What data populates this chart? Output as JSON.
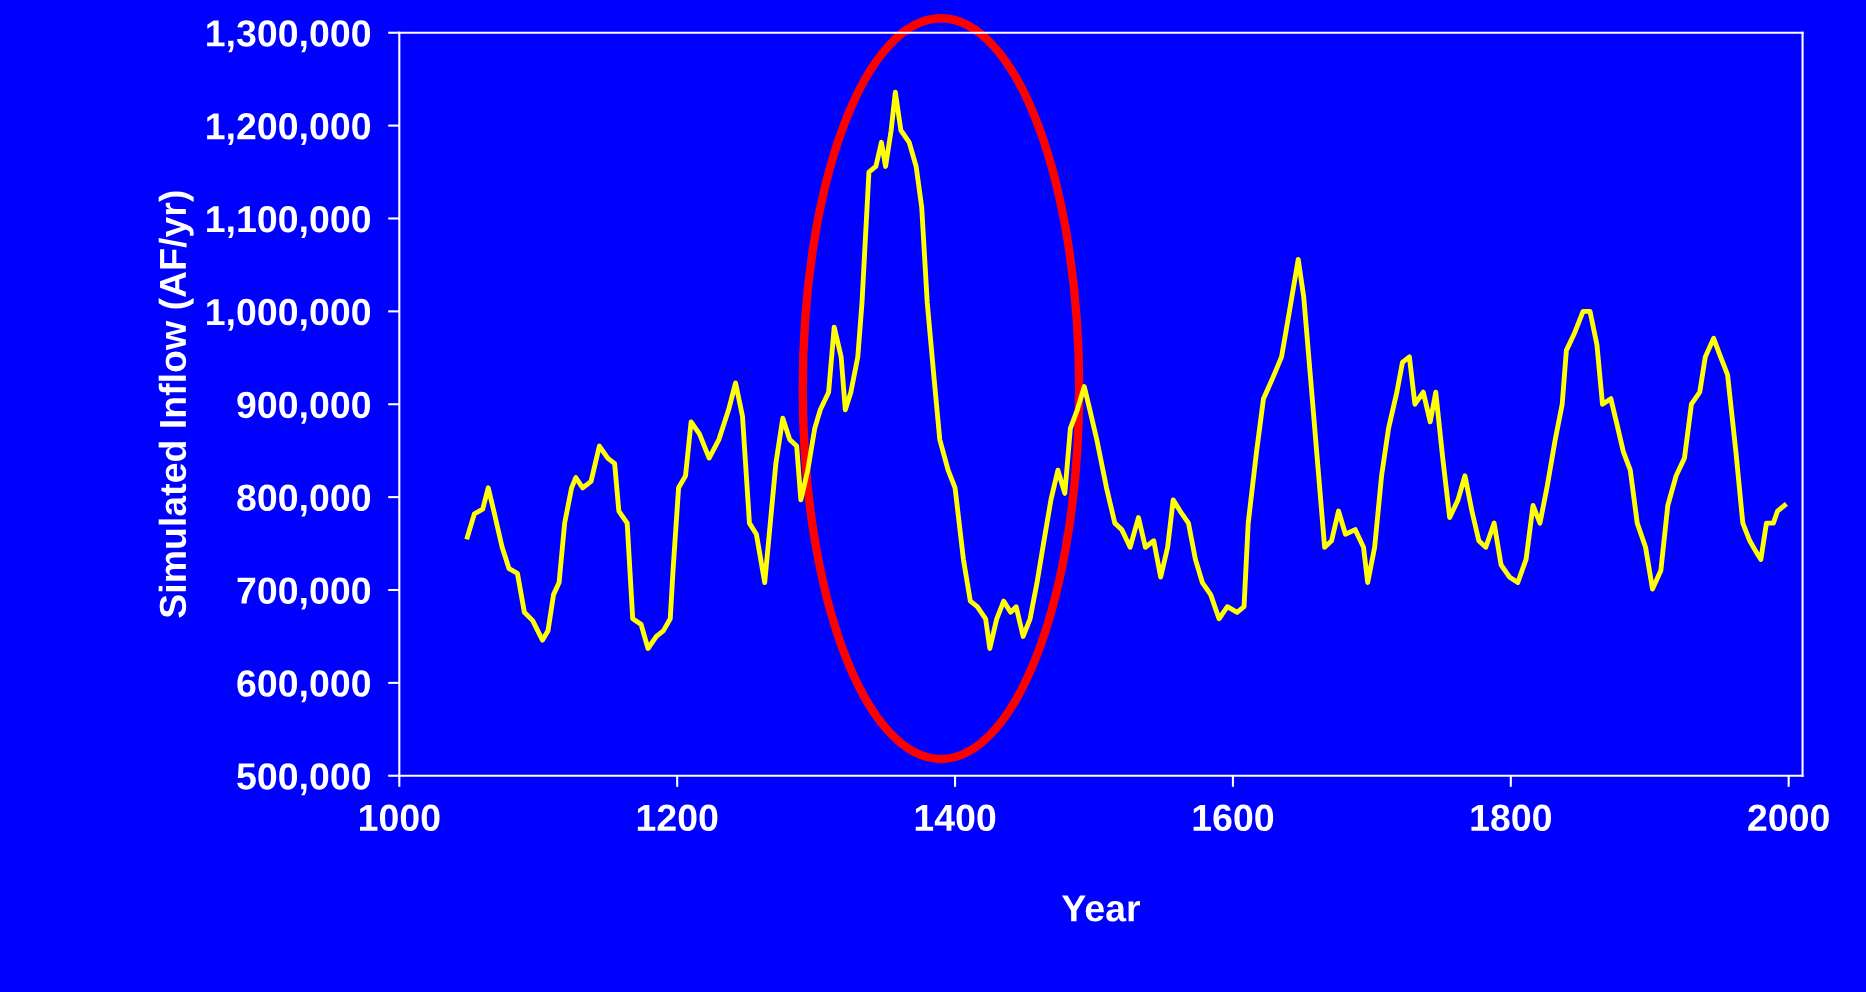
{
  "chart_data": {
    "type": "line",
    "xlabel": "Year",
    "ylabel": "Simulated Inflow (AF/yr)",
    "xlim": [
      1000,
      2010
    ],
    "xticks": [
      1000,
      1200,
      1400,
      1600,
      1800,
      2000
    ],
    "ylim": [
      500000,
      1300000
    ],
    "yticks": [
      {
        "value": 500000,
        "label": "500,000"
      },
      {
        "value": 600000,
        "label": "600,000"
      },
      {
        "value": 700000,
        "label": "700,000"
      },
      {
        "value": 800000,
        "label": "800,000"
      },
      {
        "value": 900000,
        "label": "900,000"
      },
      {
        "value": 1000000,
        "label": "1,000,000"
      },
      {
        "value": 1100000,
        "label": "1,100,000"
      },
      {
        "value": 1200000,
        "label": "1,200,000"
      },
      {
        "value": 1300000,
        "label": "1,300,000"
      }
    ],
    "grid": false,
    "legend": false,
    "marker": "none",
    "line_style": "solid",
    "series": [
      {
        "color": "#ffff00",
        "x": [
          1049,
          1054,
          1060,
          1064,
          1068,
          1074,
          1079,
          1085,
          1090,
          1096,
          1103,
          1107,
          1111,
          1115,
          1119,
          1124,
          1127,
          1132,
          1138,
          1144,
          1150,
          1155,
          1158,
          1164,
          1168,
          1174,
          1179,
          1185,
          1190,
          1195,
          1197,
          1201,
          1206,
          1210,
          1216,
          1223,
          1230,
          1237,
          1242,
          1247,
          1252,
          1257,
          1263,
          1267,
          1271,
          1276,
          1281,
          1286,
          1289,
          1294,
          1299,
          1303,
          1309,
          1313,
          1318,
          1321,
          1325,
          1330,
          1333,
          1338,
          1343,
          1347,
          1350,
          1354,
          1357,
          1361,
          1367,
          1372,
          1376,
          1380,
          1385,
          1389,
          1395,
          1400,
          1406,
          1411,
          1416,
          1422,
          1425,
          1430,
          1435,
          1440,
          1444,
          1449,
          1454,
          1459,
          1464,
          1469,
          1474,
          1479,
          1483,
          1488,
          1493,
          1497,
          1502,
          1509,
          1515,
          1520,
          1526,
          1532,
          1537,
          1543,
          1548,
          1553,
          1557,
          1562,
          1568,
          1573,
          1578,
          1584,
          1590,
          1596,
          1603,
          1608,
          1611,
          1617,
          1622,
          1628,
          1635,
          1641,
          1647,
          1651,
          1656,
          1661,
          1666,
          1671,
          1676,
          1681,
          1688,
          1694,
          1697,
          1702,
          1707,
          1712,
          1718,
          1722,
          1727,
          1731,
          1737,
          1742,
          1746,
          1751,
          1756,
          1762,
          1767,
          1772,
          1777,
          1782,
          1788,
          1793,
          1799,
          1805,
          1811,
          1816,
          1821,
          1826,
          1832,
          1837,
          1840,
          1846,
          1852,
          1857,
          1862,
          1866,
          1872,
          1876,
          1881,
          1886,
          1891,
          1897,
          1902,
          1908,
          1913,
          1919,
          1925,
          1930,
          1936,
          1940,
          1946,
          1951,
          1956,
          1962,
          1967,
          1972,
          1977,
          1980,
          1984,
          1989,
          1992,
          1997
        ],
        "values": [
          757000,
          782000,
          787000,
          810000,
          785000,
          746000,
          723000,
          718000,
          676000,
          667000,
          646000,
          656000,
          695000,
          708000,
          772000,
          810000,
          821000,
          810000,
          817000,
          855000,
          842000,
          836000,
          785000,
          772000,
          669000,
          663000,
          637000,
          650000,
          656000,
          669000,
          721000,
          810000,
          823000,
          881000,
          868000,
          842000,
          862000,
          894000,
          923000,
          887000,
          772000,
          760000,
          708000,
          772000,
          836000,
          885000,
          862000,
          855000,
          797000,
          829000,
          874000,
          894000,
          913000,
          983000,
          951000,
          894000,
          913000,
          951000,
          1009000,
          1150000,
          1156000,
          1182000,
          1156000,
          1195000,
          1236000,
          1195000,
          1182000,
          1156000,
          1112000,
          1009000,
          926000,
          862000,
          829000,
          810000,
          733000,
          688000,
          682000,
          669000,
          637000,
          669000,
          688000,
          676000,
          682000,
          650000,
          669000,
          708000,
          753000,
          797000,
          829000,
          804000,
          874000,
          894000,
          919000,
          894000,
          862000,
          810000,
          772000,
          765000,
          746000,
          778000,
          746000,
          753000,
          714000,
          746000,
          797000,
          785000,
          772000,
          733000,
          708000,
          695000,
          669000,
          682000,
          676000,
          682000,
          772000,
          849000,
          906000,
          926000,
          951000,
          1003000,
          1056000,
          1015000,
          926000,
          836000,
          746000,
          753000,
          785000,
          760000,
          765000,
          746000,
          708000,
          746000,
          823000,
          874000,
          913000,
          945000,
          951000,
          900000,
          913000,
          881000,
          913000,
          842000,
          778000,
          797000,
          823000,
          785000,
          753000,
          746000,
          772000,
          727000,
          714000,
          708000,
          733000,
          791000,
          772000,
          810000,
          862000,
          900000,
          958000,
          977000,
          1000000,
          1000000,
          964000,
          900000,
          906000,
          881000,
          849000,
          829000,
          772000,
          746000,
          701000,
          721000,
          791000,
          823000,
          842000,
          900000,
          913000,
          951000,
          971000,
          951000,
          932000,
          849000,
          772000,
          753000,
          740000,
          733000,
          772000,
          772000,
          785000,
          791000
        ]
      }
    ]
  }
}
